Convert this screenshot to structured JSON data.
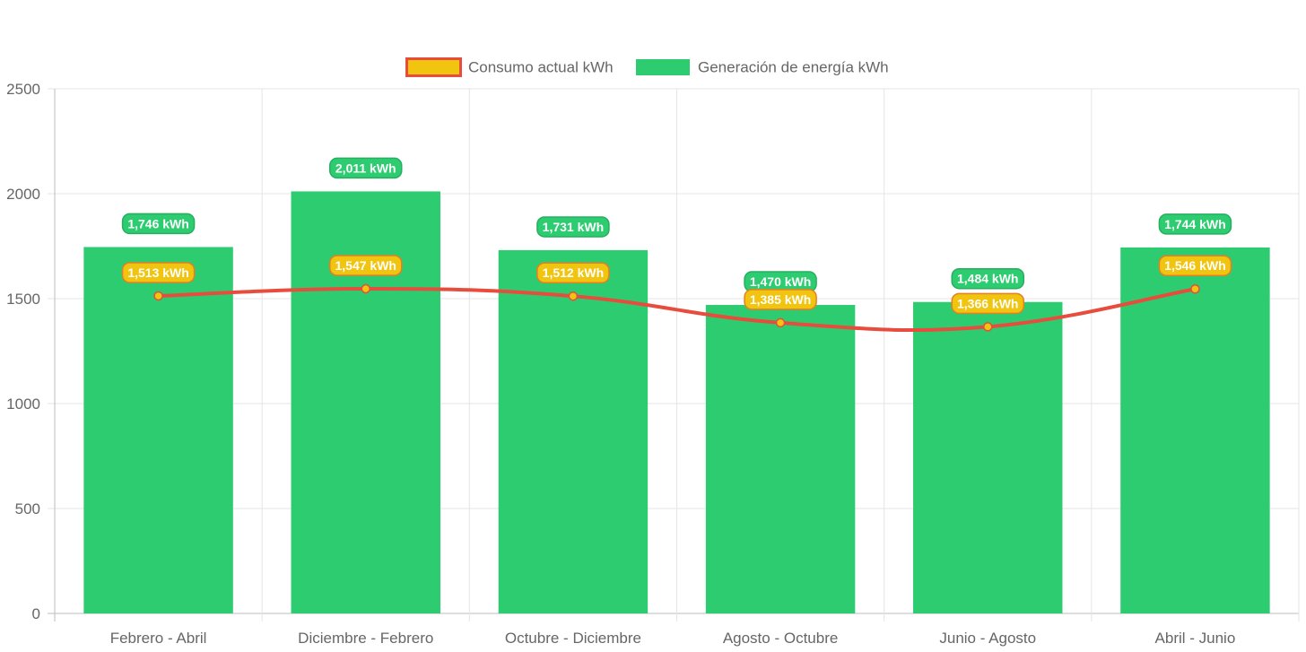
{
  "chart_data": {
    "type": "bar",
    "categories": [
      "Febrero - Abril",
      "Diciembre - Febrero",
      "Octubre - Diciembre",
      "Agosto - Octubre",
      "Junio - Agosto",
      "Abril - Junio"
    ],
    "series": [
      {
        "name": "Consumo actual kWh",
        "type": "line",
        "values": [
          1513,
          1547,
          1512,
          1385,
          1366,
          1546
        ],
        "labels": [
          "1,513 kWh",
          "1,547 kWh",
          "1,512 kWh",
          "1,385 kWh",
          "1,366 kWh",
          "1,546 kWh"
        ],
        "color": "#e74c3c",
        "fill": "#f1c40f"
      },
      {
        "name": "Generación de energía kWh",
        "type": "bar",
        "values": [
          1746,
          2011,
          1731,
          1470,
          1484,
          1744
        ],
        "labels": [
          "1,746 kWh",
          "2,011 kWh",
          "1,731 kWh",
          "1,470 kWh",
          "1,484 kWh",
          "1,744 kWh"
        ],
        "color": "#2ecc71"
      }
    ],
    "ylim": [
      0,
      2500
    ],
    "yticks": [
      "0",
      "500",
      "1000",
      "1500",
      "2000",
      "2500"
    ],
    "yticks_values": [
      0,
      500,
      1000,
      1500,
      2000,
      2500
    ],
    "grid": true,
    "legend": "top-center"
  }
}
